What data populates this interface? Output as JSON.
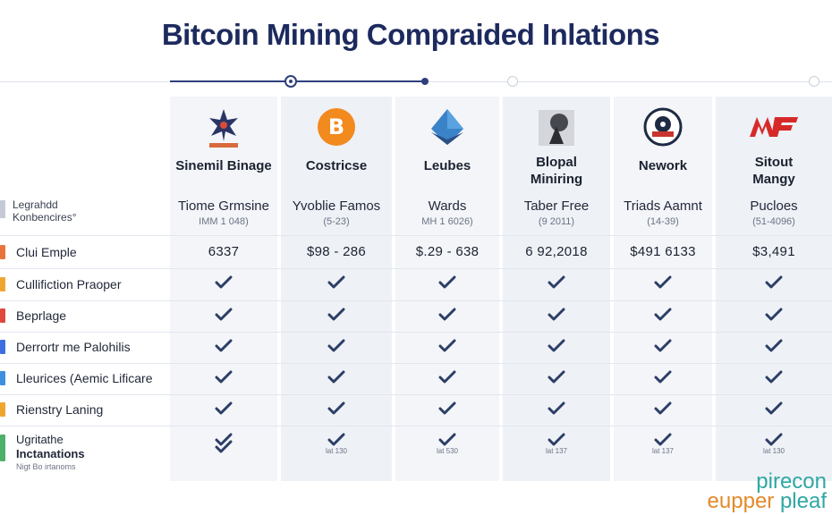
{
  "title": "Bitcoin Mining Compraided Inlations",
  "row_header": {
    "line1": "Legrahdd",
    "line2": "Konbencires°"
  },
  "columns": [
    {
      "name": "Sinemil Binage",
      "logo": "star-compass-icon",
      "sub_main": "Tiome Grmsine",
      "sub_minor": "IMM 1 048)",
      "price": "6337",
      "bottom_note": ""
    },
    {
      "name": "Costricse",
      "logo": "bitcoin-icon",
      "sub_main": "Yvoblie Famos",
      "sub_minor": "(5-23)",
      "price": "$98 - 286",
      "bottom_note": "lat 130"
    },
    {
      "name": "Leubes",
      "logo": "blue-diamond-icon",
      "sub_main": "Wards",
      "sub_minor": "MH 1 6026)",
      "price": "$.29 - 638",
      "bottom_note": "lat 530"
    },
    {
      "name": "Blopal Miniring",
      "logo": "miner-icon",
      "sub_main": "Taber Free",
      "sub_minor": "(9 2011)",
      "price": "6 92,2018",
      "bottom_note": "lat 137"
    },
    {
      "name": "Nework",
      "logo": "network-badge-icon",
      "sub_main": "Triads Aamnt",
      "sub_minor": "(14-39)",
      "price": "$491 6133",
      "bottom_note": "lat 137"
    },
    {
      "name": "Sitout Mangy",
      "logo": "red-mf-logo-icon",
      "sub_main": "Pucloes",
      "sub_minor": "(51-4096)",
      "price": "$3,491",
      "bottom_note": "lat 130"
    }
  ],
  "rows": [
    {
      "label": "Clui Emple",
      "marker_color": "#e8743b"
    },
    {
      "label": "Cullifiction Praoper",
      "marker_color": "#f0a531"
    },
    {
      "label": "Beprlage",
      "marker_color": "#e0483d"
    },
    {
      "label": "Derrortr me Palohilis",
      "marker_color": "#3d6fe0"
    },
    {
      "label": "Lleurices (Aemic Lificare",
      "marker_color": "#3d8fe0"
    },
    {
      "label": "Rienstry Laning",
      "marker_color": "#f0a531"
    }
  ],
  "last_row": {
    "line1": "Ugritathe",
    "line2": "Inctanations",
    "line3": "Nigt Bo irtanoms"
  },
  "watermark": {
    "line1": "pirecon",
    "line2a": "eupper",
    "line2b": "pleaf"
  },
  "colors": {
    "accent": "#1d2a5e",
    "check": "#2c3e66"
  }
}
